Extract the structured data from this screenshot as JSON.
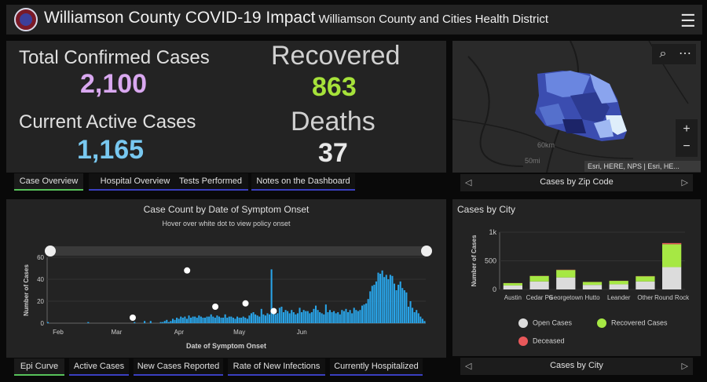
{
  "header": {
    "title": "Williamson County COVID-19 Impact",
    "subtitle": "Williamson County and Cities Health District",
    "menu_icon": "hamburger-icon"
  },
  "stats": {
    "total_label": "Total Confirmed Cases",
    "total_value": "2,100",
    "active_label": "Current Active Cases",
    "active_value": "1,165",
    "recovered_label": "Recovered",
    "recovered_value": "863",
    "deaths_label": "Deaths",
    "deaths_value": "37"
  },
  "top_tabs": [
    "Case Overview",
    "Hospital Overview",
    "Tests Performed",
    "Notes on the Dashboard"
  ],
  "map": {
    "attribution": "Esri, HERE, NPS | Esri, HE...",
    "scale_labels": [
      "60km",
      "50mi"
    ],
    "zoom_in": "+",
    "zoom_out": "−",
    "nav_label": "Cases by Zip Code"
  },
  "epi": {
    "title": "Case Count by Date of Symptom Onset",
    "subtitle": "Hover over white dot to view policy onset",
    "xlabel": "Date of Symptom Onset",
    "ylabel": "Number of Cases"
  },
  "bottom_tabs": [
    "Epi Curve",
    "Active Cases",
    "New Cases Reported",
    "Rate of New Infections",
    "Currently Hospitalized"
  ],
  "city": {
    "title": "Cases by City",
    "ylabel": "Number of Cases",
    "nav_label": "Cases by City",
    "legend": [
      "Open Cases",
      "Recovered Cases",
      "Deceased"
    ]
  },
  "colors": {
    "total": "#d9a8f0",
    "active": "#78c8f0",
    "recovered": "#a6e23a",
    "deaths": "#e8e8e8",
    "bar": "#29a4e8",
    "open": "#dcdcdc",
    "recovered_bar": "#a6e844",
    "deceased": "#e8585a"
  },
  "chart_data": [
    {
      "type": "bar",
      "title": "Case Count by Date of Symptom Onset",
      "subtitle": "Hover over white dot to view policy onset",
      "xlabel": "Date of Symptom Onset",
      "ylabel": "Number of Cases",
      "ylim": [
        0,
        60
      ],
      "yticks": [
        0,
        20,
        40,
        60
      ],
      "x_tick_labels": [
        "Feb",
        "Mar",
        "Apr",
        "May",
        "Jun"
      ],
      "x_start": "2020-02-01",
      "values": [
        1,
        0,
        0,
        0,
        0,
        0,
        0,
        0,
        0,
        0,
        0,
        0,
        0,
        0,
        0,
        0,
        0,
        0,
        0,
        0,
        1,
        0,
        0,
        0,
        0,
        0,
        0,
        0,
        0,
        0,
        0,
        0,
        0,
        0,
        0,
        0,
        0,
        0,
        0,
        0,
        0,
        0,
        0,
        1,
        0,
        0,
        0,
        0,
        2,
        0,
        0,
        2,
        0,
        0,
        0,
        0,
        1,
        1,
        2,
        3,
        1,
        2,
        4,
        3,
        5,
        4,
        6,
        5,
        6,
        4,
        7,
        5,
        6,
        6,
        5,
        7,
        6,
        5,
        5,
        6,
        6,
        8,
        6,
        5,
        7,
        6,
        5,
        5,
        8,
        5,
        6,
        6,
        5,
        4,
        6,
        5,
        5,
        6,
        5,
        4,
        7,
        9,
        10,
        8,
        7,
        6,
        13,
        8,
        7,
        9,
        8,
        49,
        12,
        8,
        9,
        14,
        15,
        10,
        12,
        11,
        9,
        12,
        10,
        8,
        9,
        14,
        10,
        12,
        11,
        11,
        9,
        10,
        13,
        16,
        12,
        10,
        9,
        8,
        17,
        10,
        12,
        10,
        11,
        9,
        10,
        8,
        12,
        11,
        13,
        10,
        12,
        9,
        14,
        12,
        11,
        12,
        16,
        17,
        18,
        22,
        29,
        34,
        35,
        38,
        46,
        45,
        48,
        42,
        44,
        40,
        44,
        43,
        36,
        30,
        35,
        38,
        32,
        30,
        28,
        15,
        20,
        14,
        10,
        12,
        9,
        6,
        4,
        2
      ],
      "policy_points": [
        {
          "date": "2020-03-14",
          "value": 5
        },
        {
          "date": "2020-04-10",
          "value": 48
        },
        {
          "date": "2020-04-24",
          "value": 15
        },
        {
          "date": "2020-05-09",
          "value": 18
        },
        {
          "date": "2020-05-23",
          "value": 11
        }
      ]
    },
    {
      "type": "bar",
      "stacked": true,
      "title": "Cases by City",
      "ylabel": "Number of Cases",
      "ylim": [
        0,
        1000
      ],
      "yticks": [
        0,
        500,
        1000
      ],
      "ytick_labels": [
        "0",
        "500",
        "1k"
      ],
      "categories": [
        "Austin",
        "Cedar Park",
        "Georgetown",
        "Hutto",
        "Leander",
        "Other",
        "Round Rock"
      ],
      "category_labels_shown": [
        "Austin",
        "Cedar Pa",
        "Georgetown",
        "Hutto",
        "Leander",
        "Other",
        "Round Rock"
      ],
      "series": [
        {
          "name": "Open Cases",
          "values": [
            70,
            140,
            210,
            80,
            90,
            140,
            390
          ]
        },
        {
          "name": "Recovered Cases",
          "values": [
            40,
            95,
            130,
            50,
            60,
            90,
            400
          ]
        },
        {
          "name": "Deceased",
          "values": [
            2,
            3,
            5,
            2,
            2,
            4,
            20
          ]
        }
      ],
      "legend": "bottom"
    }
  ]
}
